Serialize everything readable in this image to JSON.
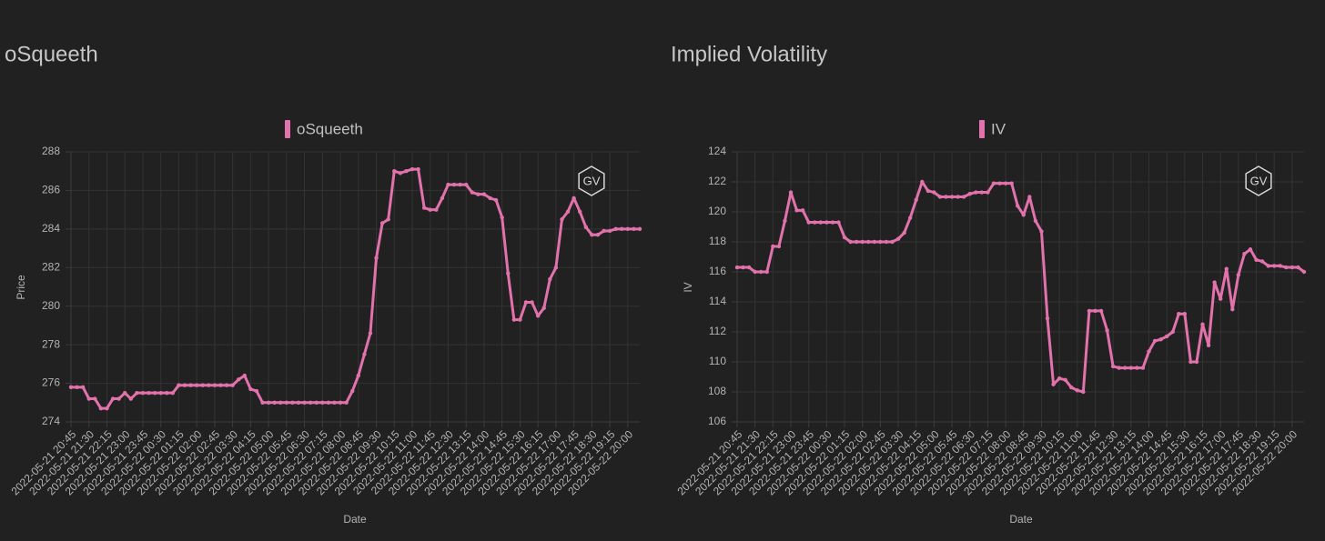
{
  "chart_data": [
    {
      "type": "line",
      "title": "oSqueeth",
      "watermark": "GV",
      "xlabel": "Date",
      "ylabel": "Price",
      "categories": [
        "2022-05-21 20:45",
        null,
        null,
        "2022-05-21 21:30",
        null,
        null,
        "2022-05-21 22:15",
        null,
        null,
        "2022-05-21 23:00",
        null,
        null,
        "2022-05-21 23:45",
        null,
        null,
        "2022-05-22 00:30",
        null,
        null,
        "2022-05-22 01:15",
        null,
        null,
        "2022-05-22 02:00",
        null,
        null,
        "2022-05-22 02:45",
        null,
        null,
        "2022-05-22 03:30",
        null,
        null,
        "2022-05-22 04:15",
        null,
        null,
        "2022-05-22 05:00",
        null,
        null,
        "2022-05-22 05:45",
        null,
        null,
        "2022-05-22 06:30",
        null,
        null,
        "2022-05-22 07:15",
        null,
        null,
        "2022-05-22 08:00",
        null,
        null,
        "2022-05-22 08:45",
        null,
        null,
        "2022-05-22 09:30",
        null,
        null,
        "2022-05-22 10:15",
        null,
        null,
        "2022-05-22 11:00",
        null,
        null,
        "2022-05-22 11:45",
        null,
        null,
        "2022-05-22 12:30",
        null,
        null,
        "2022-05-22 13:15",
        null,
        null,
        "2022-05-22 14:00",
        null,
        null,
        "2022-05-22 14:45",
        null,
        null,
        "2022-05-22 15:30",
        null,
        null,
        "2022-05-22 16:15",
        null,
        null,
        "2022-05-22 17:00",
        null,
        null,
        "2022-05-22 17:45",
        null,
        null,
        "2022-05-22 18:30",
        null,
        null,
        "2022-05-22 19:15",
        null,
        null,
        "2022-05-22 20:00",
        null,
        null
      ],
      "series": [
        {
          "name": "oSqueeth",
          "color": "#e272ab",
          "values": [
            275.8,
            275.8,
            275.8,
            275.2,
            275.2,
            274.7,
            274.7,
            275.2,
            275.2,
            275.5,
            275.2,
            275.5,
            275.5,
            275.5,
            275.5,
            275.5,
            275.5,
            275.5,
            275.9,
            275.9,
            275.9,
            275.9,
            275.9,
            275.9,
            275.9,
            275.9,
            275.9,
            275.9,
            276.2,
            276.4,
            275.7,
            275.6,
            275.0,
            275.0,
            275.0,
            275.0,
            275.0,
            275.0,
            275.0,
            275.0,
            275.0,
            275.0,
            275.0,
            275.0,
            275.0,
            275.0,
            275.0,
            275.6,
            276.4,
            277.5,
            278.6,
            282.5,
            284.3,
            284.5,
            287.0,
            286.9,
            287.0,
            287.1,
            287.1,
            285.1,
            285.0,
            285.0,
            285.6,
            286.3,
            286.3,
            286.3,
            286.3,
            285.9,
            285.8,
            285.8,
            285.6,
            285.5,
            284.6,
            281.7,
            279.3,
            279.3,
            280.2,
            280.2,
            279.5,
            279.9,
            281.4,
            282.0,
            284.5,
            284.9,
            285.6,
            284.9,
            284.1,
            283.7,
            283.7,
            283.9,
            283.9,
            284.0,
            284.0,
            284.0,
            284.0,
            284.0
          ]
        }
      ],
      "ylim": [
        274,
        288
      ],
      "yticks": [
        274,
        276,
        278,
        280,
        282,
        284,
        286,
        288
      ],
      "grid": true
    },
    {
      "type": "line",
      "title": "Implied Volatility",
      "watermark": "GV",
      "xlabel": "Date",
      "ylabel": "IV",
      "categories": [
        "2022-05-21 20:45",
        null,
        null,
        "2022-05-21 21:30",
        null,
        null,
        "2022-05-21 22:15",
        null,
        null,
        "2022-05-21 23:00",
        null,
        null,
        "2022-05-21 23:45",
        null,
        null,
        "2022-05-22 00:30",
        null,
        null,
        "2022-05-22 01:15",
        null,
        null,
        "2022-05-22 02:00",
        null,
        null,
        "2022-05-22 02:45",
        null,
        null,
        "2022-05-22 03:30",
        null,
        null,
        "2022-05-22 04:15",
        null,
        null,
        "2022-05-22 05:00",
        null,
        null,
        "2022-05-22 05:45",
        null,
        null,
        "2022-05-22 06:30",
        null,
        null,
        "2022-05-22 07:15",
        null,
        null,
        "2022-05-22 08:00",
        null,
        null,
        "2022-05-22 08:45",
        null,
        null,
        "2022-05-22 09:30",
        null,
        null,
        "2022-05-22 10:15",
        null,
        null,
        "2022-05-22 11:00",
        null,
        null,
        "2022-05-22 11:45",
        null,
        null,
        "2022-05-22 12:30",
        null,
        null,
        "2022-05-22 13:15",
        null,
        null,
        "2022-05-22 14:00",
        null,
        null,
        "2022-05-22 14:45",
        null,
        null,
        "2022-05-22 15:30",
        null,
        null,
        "2022-05-22 16:15",
        null,
        null,
        "2022-05-22 17:00",
        null,
        null,
        "2022-05-22 17:45",
        null,
        null,
        "2022-05-22 18:30",
        null,
        null,
        "2022-05-22 19:15",
        null,
        null,
        "2022-05-22 20:00",
        null,
        null
      ],
      "series": [
        {
          "name": "IV",
          "color": "#e272ab",
          "values": [
            116.3,
            116.3,
            116.3,
            116.0,
            116.0,
            116.0,
            117.7,
            117.7,
            119.4,
            121.3,
            120.1,
            120.1,
            119.3,
            119.3,
            119.3,
            119.3,
            119.3,
            119.3,
            118.3,
            118.0,
            118.0,
            118.0,
            118.0,
            118.0,
            118.0,
            118.0,
            118.0,
            118.2,
            118.6,
            119.6,
            120.8,
            122.0,
            121.4,
            121.3,
            121.0,
            121.0,
            121.0,
            121.0,
            121.0,
            121.2,
            121.3,
            121.3,
            121.3,
            121.9,
            121.9,
            121.9,
            121.9,
            120.4,
            119.8,
            121.0,
            119.4,
            118.7,
            112.9,
            108.5,
            108.9,
            108.8,
            108.3,
            108.1,
            108.0,
            113.4,
            113.4,
            113.4,
            112.1,
            109.7,
            109.6,
            109.6,
            109.6,
            109.6,
            109.6,
            110.7,
            111.4,
            111.5,
            111.7,
            112.0,
            113.2,
            113.2,
            110.0,
            110.0,
            112.5,
            111.1,
            115.3,
            114.2,
            116.2,
            113.5,
            115.8,
            117.2,
            117.5,
            116.8,
            116.7,
            116.4,
            116.4,
            116.4,
            116.3,
            116.3,
            116.3,
            116.0
          ]
        }
      ],
      "ylim": [
        106,
        124
      ],
      "yticks": [
        106,
        108,
        110,
        112,
        114,
        116,
        118,
        120,
        122,
        124
      ],
      "grid": true
    }
  ]
}
